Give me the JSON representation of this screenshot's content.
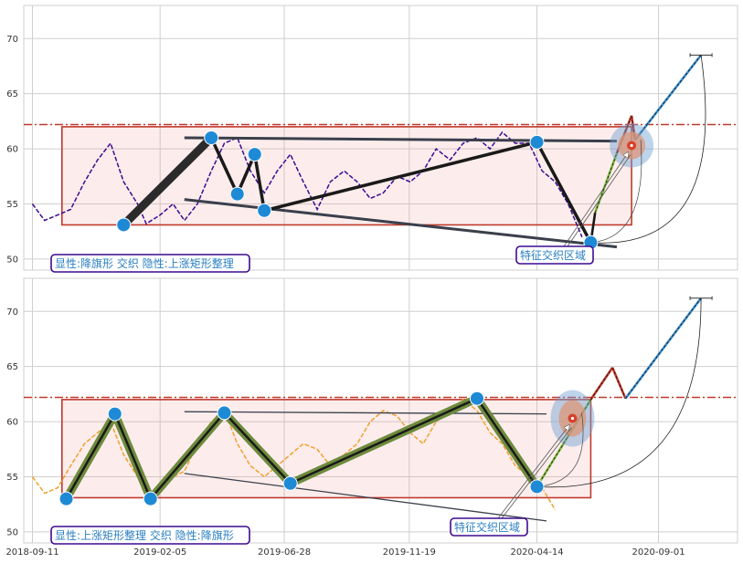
{
  "chart_data": [
    {
      "type": "line",
      "panel": "top",
      "ylim": [
        49,
        73
      ],
      "yticks": [
        "50",
        "55",
        "60",
        "65",
        "70"
      ],
      "ytick_values": [
        50,
        55,
        60,
        65,
        70
      ],
      "xlim": [
        "2018-09-01",
        "2020-12-01"
      ],
      "grid": true,
      "series": [
        {
          "style": "dashed",
          "color": "#3d0a91",
          "x": [
            "2018-09-11",
            "2018-09-25",
            "2018-10-10",
            "2018-10-25",
            "2018-11-10",
            "2018-11-25",
            "2018-12-10",
            "2018-12-25",
            "2019-01-10",
            "2019-01-20",
            "2019-02-05",
            "2019-02-20",
            "2019-03-05",
            "2019-03-20",
            "2019-04-05",
            "2019-04-20",
            "2019-05-05",
            "2019-05-20",
            "2019-06-05",
            "2019-06-20",
            "2019-07-05",
            "2019-07-20",
            "2019-08-05",
            "2019-08-20",
            "2019-09-05",
            "2019-09-20",
            "2019-10-05",
            "2019-10-20",
            "2019-11-05",
            "2019-11-20",
            "2019-12-05",
            "2019-12-20",
            "2020-01-05",
            "2020-01-20",
            "2020-02-05",
            "2020-02-20",
            "2020-03-05",
            "2020-03-20",
            "2020-04-05",
            "2020-04-20",
            "2020-05-05",
            "2020-05-20",
            "2020-06-05"
          ],
          "y": [
            55,
            53.5,
            54,
            54.5,
            57,
            59,
            60.5,
            57,
            55,
            53.2,
            54,
            55,
            53.5,
            55,
            58,
            60.5,
            61,
            58,
            56,
            58,
            59.5,
            57,
            54.5,
            57,
            58,
            57,
            55.5,
            56,
            57.5,
            57,
            58,
            60,
            59,
            60.5,
            61,
            60,
            61.5,
            60.5,
            60.5,
            58,
            57,
            55,
            52
          ]
        }
      ],
      "pivots": {
        "x": [
          "2018-12-25",
          "2019-04-05",
          "2019-05-05",
          "2019-05-25",
          "2019-06-05",
          "2020-04-14",
          "2020-06-15"
        ],
        "y": [
          53.1,
          61,
          55.9,
          59.5,
          54.4,
          60.6,
          51.5
        ]
      },
      "rectangle": {
        "x0": "2018-10-15",
        "x1": "2020-08-01",
        "y0": 53.1,
        "y1": 62
      },
      "hline": 62.2,
      "upper_trendline": {
        "x": [
          "2019-03-05",
          "2020-07-15"
        ],
        "y": [
          61,
          60.7
        ]
      },
      "lower_trendline": {
        "x": [
          "2019-03-05",
          "2020-07-15"
        ],
        "y": [
          55.4,
          51.1
        ]
      },
      "projection": {
        "x": [
          "2020-06-15",
          "2020-06-20",
          "2020-07-15",
          "2020-08-01",
          "2020-08-05",
          "2020-10-20"
        ],
        "y": [
          51.5,
          54.2,
          59.6,
          63,
          60.8,
          68.5
        ]
      },
      "target": {
        "x": "2020-08-01",
        "y": 60.3
      },
      "annotations": [
        "显性:降旗形 交织 隐性:上涨矩形整理",
        "特征交织区域"
      ]
    },
    {
      "type": "line",
      "panel": "bottom",
      "ylim": [
        49,
        73
      ],
      "yticks": [
        "50",
        "55",
        "60",
        "65",
        "70"
      ],
      "ytick_values": [
        50,
        55,
        60,
        65,
        70
      ],
      "xlim": [
        "2018-09-01",
        "2020-12-01"
      ],
      "xticks": [
        "2018-09-11",
        "2019-02-05",
        "2019-06-28",
        "2019-11-19",
        "2020-04-14",
        "2020-09-01"
      ],
      "grid": true,
      "series": [
        {
          "style": "dashed",
          "color": "#f0a030",
          "x": [
            "2018-09-11",
            "2018-09-25",
            "2018-10-10",
            "2018-10-25",
            "2018-11-10",
            "2018-11-25",
            "2018-12-10",
            "2018-12-25",
            "2019-01-10",
            "2019-01-25",
            "2019-02-05",
            "2019-02-20",
            "2019-03-05",
            "2019-03-20",
            "2019-04-05",
            "2019-04-20",
            "2019-05-05",
            "2019-05-20",
            "2019-06-05",
            "2019-06-20",
            "2019-07-05",
            "2019-07-20",
            "2019-08-05",
            "2019-08-20",
            "2019-09-05",
            "2019-09-20",
            "2019-10-05",
            "2019-10-20",
            "2019-11-05",
            "2019-11-20",
            "2019-12-05",
            "2019-12-20",
            "2020-01-05",
            "2020-01-20",
            "2020-02-05",
            "2020-02-20",
            "2020-03-05",
            "2020-03-20",
            "2020-04-05",
            "2020-04-20",
            "2020-05-05"
          ],
          "y": [
            55,
            53.5,
            54,
            56,
            58,
            59,
            60,
            57,
            55,
            53.2,
            54,
            55,
            55.5,
            58,
            60,
            61,
            58,
            56,
            55,
            56,
            57,
            58,
            57.5,
            56,
            57,
            58,
            60,
            61,
            60.5,
            59,
            58,
            60,
            61,
            62,
            61,
            59,
            58,
            56,
            55,
            54,
            52
          ]
        }
      ],
      "pivots": {
        "x": [
          "2018-10-20",
          "2018-12-15",
          "2019-01-25",
          "2019-04-20",
          "2019-07-05",
          "2020-02-05",
          "2020-04-14"
        ],
        "y": [
          53,
          60.7,
          53,
          60.8,
          54.4,
          62.1,
          54.1
        ]
      },
      "rectangle": {
        "x0": "2018-10-15",
        "x1": "2020-06-15",
        "y0": 53.1,
        "y1": 62
      },
      "hline": 62.2,
      "upper_trendline": {
        "x": [
          "2019-03-05",
          "2020-04-25"
        ],
        "y": [
          60.9,
          60.7
        ]
      },
      "lower_trendline": {
        "x": [
          "2019-03-05",
          "2020-04-25"
        ],
        "y": [
          55.3,
          51
        ]
      },
      "projection": {
        "x": [
          "2020-04-14",
          "2020-06-15",
          "2020-07-10",
          "2020-07-25",
          "2020-10-20"
        ],
        "y": [
          54.1,
          62,
          64.9,
          62.1,
          71.2
        ]
      },
      "target": {
        "x": "2020-05-25",
        "y": 60.3
      },
      "annotations": [
        "显性:上涨矩形整理 交织 隐性:降旗形",
        "特征交织区域"
      ]
    }
  ]
}
